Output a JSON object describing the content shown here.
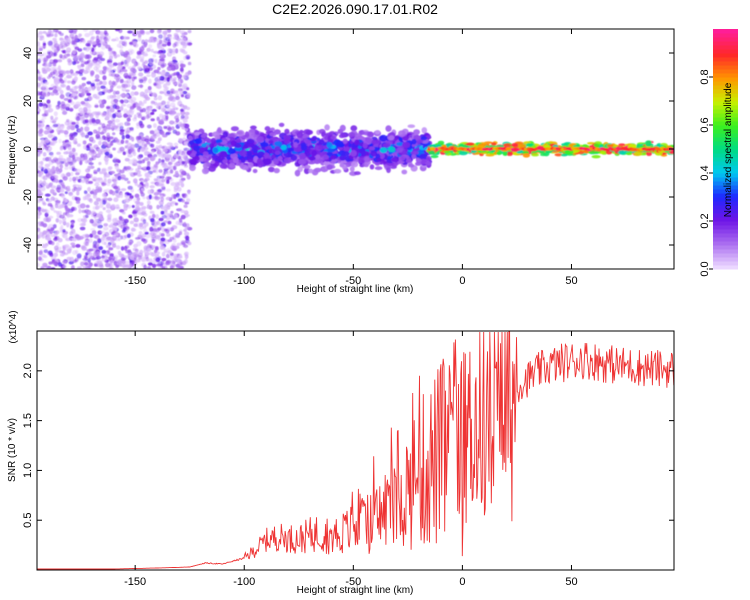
{
  "title": "C2E2.2026.090.17.01.R02",
  "chart_data": [
    {
      "type": "heatmap",
      "name": "spectrogram",
      "xlabel": "Height of straight line (km)",
      "ylabel": "Frequency (Hz)",
      "xlim": [
        -195,
        97
      ],
      "ylim": [
        -50,
        50
      ],
      "xticks": [
        -150,
        -100,
        -50,
        0,
        50
      ],
      "yticks": [
        -40,
        -20,
        0,
        20,
        40
      ],
      "colorbar": {
        "label": "Normalized spectral amplitude",
        "range": [
          0,
          1
        ],
        "ticks": [
          "0.0",
          "0.2",
          "0.4",
          "0.6",
          "0.8"
        ],
        "tick_values": [
          0,
          0.2,
          0.4,
          0.6,
          0.8
        ]
      },
      "regions": [
        {
          "x_range": [
            -195,
            -125
          ],
          "freq_range": [
            -50,
            50
          ],
          "amplitude": [
            0.02,
            0.25
          ],
          "description": "scattered noise"
        },
        {
          "x_range": [
            -125,
            -15
          ],
          "freq_range": [
            -8,
            8
          ],
          "amplitude": [
            0.15,
            0.45
          ]
        },
        {
          "x_range": [
            -15,
            97
          ],
          "freq_range": [
            -2.5,
            2.5
          ],
          "amplitude": [
            0.45,
            0.95
          ]
        }
      ]
    },
    {
      "type": "line",
      "name": "snr",
      "xlabel": "Height of straight line (km)",
      "ylabel": "SNR (10 * v/v)",
      "y_multiplier_label": "(x10^4)",
      "xlim": [
        -195,
        97
      ],
      "ylim": [
        0,
        2.4
      ],
      "xticks": [
        -150,
        -100,
        -50,
        0,
        50
      ],
      "yticks": [
        0.5,
        1.0,
        1.5,
        2.0
      ],
      "ytick_labels": [
        "0.5",
        "1.0",
        "1.5",
        "2.0"
      ],
      "series": [
        {
          "name": "SNR",
          "color": "#ee3333",
          "x": [
            -195,
            -180,
            -160,
            -140,
            -125,
            -118,
            -110,
            -100,
            -95,
            -90,
            -85,
            -80,
            -75,
            -70,
            -65,
            -60,
            -55,
            -50,
            -45,
            -40,
            -35,
            -30,
            -25,
            -20,
            -15,
            -10,
            -5,
            0,
            5,
            10,
            15,
            20,
            25,
            30,
            35,
            40,
            45,
            50,
            55,
            60,
            65,
            70,
            75,
            80,
            85,
            90,
            97
          ],
          "y": [
            0.01,
            0.01,
            0.01,
            0.02,
            0.03,
            0.07,
            0.06,
            0.12,
            0.2,
            0.3,
            0.33,
            0.32,
            0.31,
            0.35,
            0.38,
            0.35,
            0.37,
            0.42,
            0.45,
            0.5,
            0.62,
            0.75,
            0.82,
            0.95,
            1.05,
            1.15,
            1.22,
            1.3,
            1.45,
            1.55,
            1.5,
            1.65,
            1.85,
            1.92,
            2.0,
            2.05,
            2.08,
            2.1,
            2.12,
            2.1,
            2.08,
            2.06,
            2.05,
            2.04,
            2.03,
            2.02,
            2.02
          ]
        }
      ]
    }
  ]
}
